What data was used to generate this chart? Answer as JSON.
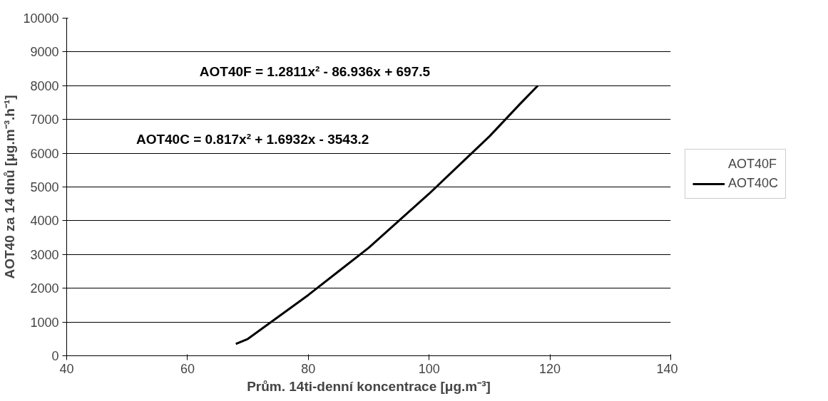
{
  "chart_data": {
    "type": "line",
    "xlabel": "Prům. 14ti-denní koncentrace [μg.m⁻³]",
    "ylabel": "AOT40 za 14 dnů [μg.m⁻³.h⁻¹]",
    "xlim": [
      40,
      140
    ],
    "xticks": [
      40,
      60,
      80,
      100,
      120,
      140
    ],
    "ylim": [
      0,
      10000
    ],
    "yticks": [
      0,
      1000,
      2000,
      3000,
      4000,
      5000,
      6000,
      7000,
      8000,
      9000,
      10000
    ],
    "grid": "y",
    "legend": "right",
    "annotations": [
      "AOT40F = 1.2811x² - 86.936x + 697.5",
      "AOT40C = 0.817x² + 1.6932x - 3543.2"
    ],
    "series": [
      {
        "name": "AOT40F"
      },
      {
        "name": "AOT40C",
        "color": "#000000",
        "x": [
          68,
          70,
          75,
          80,
          85,
          90,
          95,
          100,
          105,
          110,
          115,
          118
        ],
        "values": [
          350,
          500,
          1150,
          1800,
          2500,
          3200,
          4000,
          4800,
          5650,
          6500,
          7450,
          8000
        ]
      }
    ]
  }
}
